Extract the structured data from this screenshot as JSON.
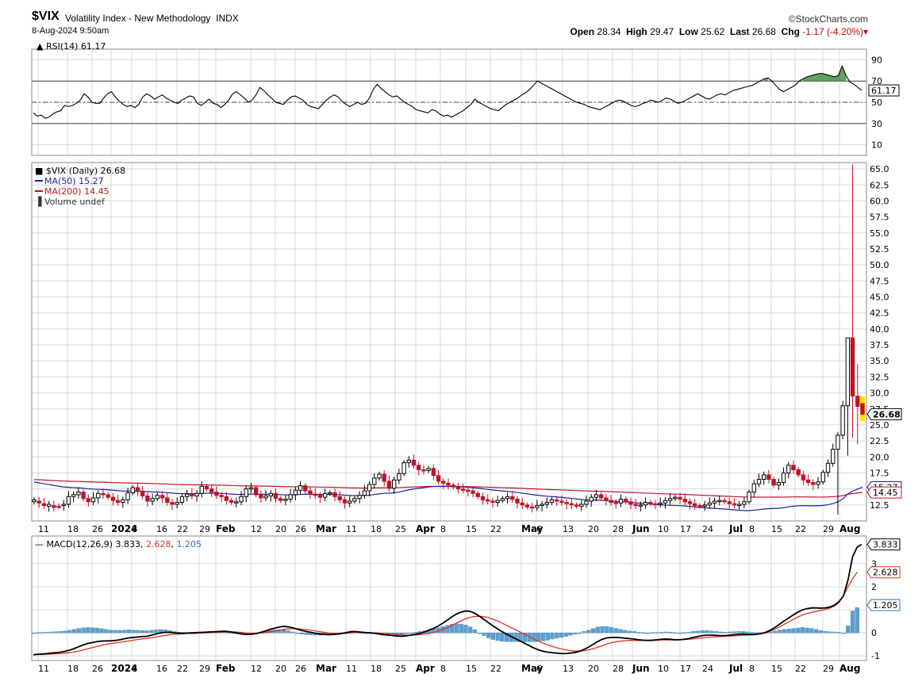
{
  "header": {
    "symbol": "$VIX",
    "description": "Volatility Index - New Methodology",
    "exchange": "INDX",
    "datetime": "8-Aug-2024 9:50am",
    "brand": "©StockCharts.com",
    "open_label": "Open",
    "open": "28.34",
    "high_label": "High",
    "high": "29.47",
    "low_label": "Low",
    "low": "25.62",
    "last_label": "Last",
    "last": "26.68",
    "chg_label": "Chg",
    "chg": "-1.17 (-4.20%)"
  },
  "colors": {
    "up": "#000000",
    "down": "#c0122a",
    "ma50": "#1c1ca0",
    "ma200": "#c0122a",
    "rsi": "#000000",
    "macd": "#000000",
    "signal": "#e03020",
    "hist": "#5aa0d0",
    "grid": "#d8d8d8",
    "highlight": "#ffe000"
  },
  "x_labels": [
    "11",
    "18",
    "26",
    "2024",
    "8",
    "16",
    "22",
    "29",
    "Feb",
    "12",
    "20",
    "26",
    "Mar",
    "11",
    "18",
    "25",
    "Apr",
    "8",
    "15",
    "22",
    "May",
    "6",
    "13",
    "20",
    "28",
    "Jun",
    "10",
    "17",
    "24",
    "Jul",
    "8",
    "15",
    "22",
    "29",
    "Aug"
  ],
  "chart_data": [
    {
      "type": "line",
      "name": "RSI(14)",
      "legend": "RSI(14) 61.17",
      "ylim": [
        0,
        100
      ],
      "yticks": [
        10,
        30,
        50,
        70,
        90
      ],
      "tick_labels": [
        "10",
        "30",
        "50",
        "70",
        "90"
      ],
      "reference_lines": [
        30,
        50,
        70
      ],
      "last_value": "61.17",
      "series": [
        {
          "name": "RSI(14)",
          "values": [
            40,
            37,
            38,
            35,
            36,
            39,
            41,
            42,
            47,
            46,
            47,
            49,
            52,
            58,
            55,
            50,
            49,
            49,
            54,
            58,
            60,
            55,
            51,
            48,
            46,
            47,
            45,
            48,
            55,
            58,
            56,
            53,
            55,
            57,
            54,
            52,
            50,
            49,
            52,
            54,
            56,
            55,
            49,
            47,
            50,
            53,
            49,
            48,
            45,
            48,
            52,
            58,
            60,
            57,
            54,
            50,
            52,
            57,
            64,
            61,
            57,
            54,
            50,
            49,
            48,
            52,
            55,
            56,
            54,
            52,
            48,
            46,
            45,
            44,
            48,
            52,
            55,
            57,
            55,
            51,
            48,
            46,
            48,
            50,
            48,
            49,
            54,
            62,
            67,
            63,
            60,
            57,
            55,
            56,
            53,
            50,
            48,
            46,
            43,
            42,
            41,
            40,
            43,
            42,
            39,
            37,
            38,
            36,
            38,
            40,
            42,
            45,
            48,
            53,
            50,
            48,
            46,
            44,
            43,
            42,
            45,
            48,
            50,
            52,
            54,
            57,
            59,
            62,
            66,
            70,
            68,
            66,
            64,
            62,
            60,
            58,
            56,
            54,
            52,
            50,
            49,
            48,
            46,
            45,
            44,
            43,
            45,
            47,
            49,
            51,
            52,
            51,
            49,
            47,
            46,
            47,
            49,
            50,
            52,
            51,
            50,
            52,
            54,
            53,
            51,
            49,
            50,
            52,
            54,
            56,
            58,
            56,
            54,
            53,
            55,
            57,
            58,
            57,
            59,
            61,
            62,
            63,
            64,
            65,
            66,
            68,
            70,
            72,
            73,
            70,
            66,
            62,
            60,
            62,
            64,
            66,
            70,
            72,
            74,
            75,
            76,
            77,
            77,
            76,
            75,
            74,
            75,
            84,
            75,
            69,
            67,
            64,
            61.17
          ]
        }
      ]
    },
    {
      "type": "candlestick",
      "name": "$VIX (Daily)",
      "legend": "$VIX (Daily) 26.68",
      "ylim": [
        10,
        66
      ],
      "yticks": [
        12.5,
        15.0,
        17.5,
        20.0,
        22.5,
        25.0,
        27.5,
        30.0,
        32.5,
        35.0,
        37.5,
        40.0,
        42.5,
        45.0,
        47.5,
        50.0,
        52.5,
        55.0,
        57.5,
        60.0,
        62.5,
        65.0
      ],
      "tick_labels": [
        "12.5",
        "17.5",
        "20.0",
        "22.5",
        "25.0",
        "27.5",
        "30.0",
        "32.5",
        "35.0",
        "37.5",
        "40.0",
        "42.5",
        "45.0",
        "47.5",
        "50.0",
        "52.5",
        "55.0",
        "57.5",
        "60.0",
        "62.5",
        "65.0"
      ],
      "close": [
        13.3,
        12.8,
        12.4,
        12.6,
        12.1,
        12.2,
        12.6,
        13.8,
        14.1,
        14.5,
        13.5,
        13.0,
        13.6,
        14.3,
        14.1,
        13.7,
        13.2,
        12.9,
        13.3,
        14.4,
        15.2,
        14.6,
        13.9,
        13.1,
        13.5,
        14.0,
        13.6,
        12.9,
        12.6,
        12.9,
        13.8,
        14.2,
        13.9,
        14.3,
        15.4,
        15.0,
        14.5,
        14.0,
        13.8,
        13.2,
        12.9,
        13.0,
        13.8,
        15.0,
        15.2,
        14.1,
        13.6,
        13.9,
        14.3,
        13.5,
        13.2,
        13.4,
        14.1,
        14.8,
        15.5,
        14.7,
        14.2,
        14.0,
        13.7,
        14.3,
        14.4,
        13.8,
        13.3,
        12.8,
        13.1,
        13.5,
        14.0,
        14.7,
        15.7,
        16.7,
        17.3,
        16.2,
        15.1,
        16.4,
        17.4,
        19.1,
        19.5,
        18.7,
        18.0,
        17.9,
        18.2,
        17.1,
        16.2,
        15.9,
        15.6,
        15.3,
        15.0,
        14.8,
        14.7,
        14.3,
        13.8,
        13.3,
        13.1,
        12.9,
        13.2,
        13.5,
        13.8,
        13.4,
        12.8,
        12.5,
        12.2,
        12.1,
        12.4,
        12.6,
        12.9,
        13.3,
        13.1,
        12.9,
        12.7,
        12.5,
        12.3,
        12.6,
        13.1,
        13.7,
        14.1,
        13.6,
        13.2,
        12.9,
        12.8,
        13.4,
        13.0,
        12.6,
        12.4,
        12.5,
        12.9,
        12.7,
        12.6,
        12.8,
        13.2,
        13.5,
        13.7,
        13.4,
        13.0,
        12.7,
        12.4,
        12.3,
        12.5,
        12.8,
        13.1,
        13.2,
        13.0,
        12.7,
        12.5,
        12.6,
        13.0,
        14.5,
        15.8,
        16.5,
        17.2,
        16.5,
        15.6,
        16.0,
        17.5,
        18.7,
        18.0,
        17.2,
        16.4,
        16.0,
        15.7,
        16.1,
        17.6,
        19.0,
        21.2,
        23.4,
        28.0,
        38.6,
        29.5,
        27.9,
        26.68
      ],
      "open": [
        13.0,
        13.1,
        12.7,
        12.3,
        12.4,
        12.3,
        12.4,
        12.6,
        13.8,
        14.1,
        14.5,
        13.5,
        13.0,
        13.6,
        14.3,
        14.1,
        13.7,
        13.2,
        12.9,
        13.3,
        14.4,
        15.2,
        14.6,
        13.9,
        13.1,
        13.5,
        14.0,
        13.6,
        12.9,
        12.6,
        12.9,
        13.8,
        14.2,
        13.9,
        14.3,
        15.4,
        15.0,
        14.5,
        14.0,
        13.8,
        13.2,
        12.9,
        13.0,
        13.8,
        15.0,
        15.2,
        14.1,
        13.6,
        13.9,
        14.3,
        13.5,
        13.2,
        13.4,
        14.1,
        14.8,
        15.5,
        14.7,
        14.2,
        14.0,
        13.7,
        14.3,
        14.4,
        13.8,
        13.3,
        12.8,
        13.1,
        13.5,
        14.0,
        14.7,
        15.7,
        16.7,
        17.3,
        16.2,
        15.1,
        16.4,
        17.4,
        19.1,
        19.5,
        18.7,
        18.0,
        17.9,
        18.2,
        17.1,
        16.2,
        15.9,
        15.6,
        15.3,
        15.0,
        14.8,
        14.7,
        14.3,
        13.8,
        13.3,
        13.1,
        12.9,
        13.2,
        13.5,
        13.8,
        13.4,
        12.8,
        12.5,
        12.2,
        12.1,
        12.4,
        12.6,
        12.9,
        13.3,
        13.1,
        12.9,
        12.7,
        12.5,
        12.3,
        12.6,
        13.1,
        13.7,
        14.1,
        13.6,
        13.2,
        12.9,
        12.8,
        13.4,
        13.0,
        12.6,
        12.4,
        12.5,
        12.9,
        12.7,
        12.6,
        12.8,
        13.2,
        13.5,
        13.7,
        13.4,
        13.0,
        12.7,
        12.4,
        12.3,
        12.5,
        12.8,
        13.1,
        13.2,
        13.0,
        12.7,
        12.5,
        12.6,
        13.0,
        14.5,
        15.8,
        16.5,
        17.2,
        16.5,
        15.6,
        16.0,
        17.5,
        18.7,
        18.0,
        17.2,
        16.4,
        16.0,
        15.7,
        16.1,
        17.6,
        19.0,
        21.2,
        23.4,
        28.0,
        38.6,
        29.5,
        28.34
      ],
      "ma50_last": "15.27",
      "ma200_last": "14.45",
      "last_value": "26.68",
      "legend_items": [
        "MA(50) 15.27",
        "MA(200) 14.45",
        "Volume undef"
      ]
    },
    {
      "type": "line",
      "name": "MACD(12,26,9)",
      "legend_prefix": "MACD(12,26,9)",
      "macd_last": "3.833",
      "signal_last": "2.628",
      "hist_last": "1.205",
      "ylim": [
        -1.2,
        4.2
      ],
      "yticks": [
        -1,
        0,
        1,
        2,
        3
      ],
      "tick_labels": [
        "-1",
        "0",
        "2",
        "3"
      ],
      "series": [
        {
          "name": "MACD",
          "values": [
            -0.95,
            -0.93,
            -0.92,
            -0.9,
            -0.88,
            -0.86,
            -0.84,
            -0.8,
            -0.75,
            -0.68,
            -0.6,
            -0.52,
            -0.46,
            -0.42,
            -0.38,
            -0.36,
            -0.35,
            -0.35,
            -0.33,
            -0.3,
            -0.26,
            -0.22,
            -0.2,
            -0.18,
            -0.16,
            -0.15,
            -0.1,
            -0.05,
            0.0,
            0.02,
            0.02,
            0.0,
            -0.02,
            -0.02,
            -0.01,
            0.0,
            0.01,
            0.02,
            0.03,
            0.04,
            0.05,
            0.06,
            0.07,
            0.05,
            0.02,
            -0.02,
            -0.06,
            -0.07,
            -0.06,
            -0.03,
            0.02,
            0.08,
            0.15,
            0.2,
            0.25,
            0.28,
            0.26,
            0.22,
            0.16,
            0.1,
            0.06,
            0.02,
            -0.02,
            -0.05,
            -0.07,
            -0.08,
            -0.07,
            -0.05,
            -0.02,
            0.02,
            0.06,
            0.05,
            0.03,
            0.01,
            0.0,
            -0.02,
            -0.05,
            -0.08,
            -0.1,
            -0.12,
            -0.14,
            -0.15,
            -0.13,
            -0.1,
            -0.06,
            -0.02,
            0.04,
            0.12,
            0.2,
            0.3,
            0.42,
            0.56,
            0.7,
            0.82,
            0.9,
            0.95,
            0.93,
            0.85,
            0.72,
            0.58,
            0.44,
            0.3,
            0.17,
            0.05,
            -0.06,
            -0.16,
            -0.26,
            -0.36,
            -0.46,
            -0.56,
            -0.66,
            -0.74,
            -0.8,
            -0.84,
            -0.86,
            -0.88,
            -0.9,
            -0.9,
            -0.88,
            -0.85,
            -0.8,
            -0.72,
            -0.62,
            -0.5,
            -0.38,
            -0.28,
            -0.22,
            -0.2,
            -0.2,
            -0.21,
            -0.23,
            -0.25,
            -0.27,
            -0.3,
            -0.32,
            -0.33,
            -0.32,
            -0.3,
            -0.28,
            -0.27,
            -0.28,
            -0.3,
            -0.3,
            -0.28,
            -0.25,
            -0.2,
            -0.16,
            -0.12,
            -0.1,
            -0.1,
            -0.11,
            -0.12,
            -0.12,
            -0.1,
            -0.08,
            -0.06,
            -0.05,
            -0.06,
            -0.07,
            -0.06,
            -0.03,
            0.03,
            0.12,
            0.24,
            0.38,
            0.52,
            0.65,
            0.78,
            0.9,
            1.0,
            1.05,
            1.08,
            1.08,
            1.07,
            1.08,
            1.12,
            1.2,
            1.35,
            1.6,
            2.3,
            3.3,
            3.72,
            3.833
          ]
        },
        {
          "name": "Signal",
          "values": [
            -0.95,
            -0.94,
            -0.94,
            -0.93,
            -0.92,
            -0.91,
            -0.9,
            -0.88,
            -0.86,
            -0.83,
            -0.79,
            -0.74,
            -0.69,
            -0.64,
            -0.59,
            -0.54,
            -0.5,
            -0.47,
            -0.44,
            -0.41,
            -0.38,
            -0.35,
            -0.32,
            -0.29,
            -0.26,
            -0.24,
            -0.21,
            -0.18,
            -0.14,
            -0.11,
            -0.08,
            -0.06,
            -0.05,
            -0.04,
            -0.03,
            -0.03,
            -0.02,
            -0.01,
            0.0,
            0.01,
            0.02,
            0.03,
            0.04,
            0.04,
            0.04,
            0.03,
            0.01,
            -0.01,
            -0.02,
            -0.02,
            -0.01,
            0.01,
            0.04,
            0.07,
            0.11,
            0.15,
            0.17,
            0.18,
            0.18,
            0.16,
            0.14,
            0.11,
            0.08,
            0.05,
            0.02,
            -0.01,
            -0.02,
            -0.03,
            -0.03,
            -0.02,
            0.0,
            0.01,
            0.02,
            0.02,
            0.01,
            0.0,
            -0.01,
            -0.03,
            -0.04,
            -0.06,
            -0.08,
            -0.09,
            -0.1,
            -0.1,
            -0.09,
            -0.08,
            -0.05,
            -0.02,
            0.02,
            0.08,
            0.15,
            0.23,
            0.33,
            0.43,
            0.52,
            0.61,
            0.67,
            0.71,
            0.72,
            0.7,
            0.66,
            0.59,
            0.51,
            0.42,
            0.32,
            0.22,
            0.13,
            0.03,
            -0.07,
            -0.17,
            -0.27,
            -0.36,
            -0.45,
            -0.52,
            -0.59,
            -0.65,
            -0.7,
            -0.74,
            -0.77,
            -0.79,
            -0.79,
            -0.78,
            -0.74,
            -0.69,
            -0.63,
            -0.56,
            -0.49,
            -0.43,
            -0.39,
            -0.36,
            -0.34,
            -0.33,
            -0.33,
            -0.33,
            -0.33,
            -0.33,
            -0.33,
            -0.32,
            -0.31,
            -0.31,
            -0.31,
            -0.31,
            -0.3,
            -0.29,
            -0.28,
            -0.26,
            -0.24,
            -0.22,
            -0.2,
            -0.18,
            -0.17,
            -0.16,
            -0.15,
            -0.14,
            -0.13,
            -0.12,
            -0.11,
            -0.1,
            -0.09,
            -0.07,
            -0.04,
            0.01,
            0.08,
            0.16,
            0.26,
            0.37,
            0.48,
            0.59,
            0.69,
            0.77,
            0.84,
            0.89,
            0.93,
            0.97,
            1.01,
            1.07,
            1.16,
            1.32,
            1.62,
            2.0,
            2.35,
            2.628
          ]
        }
      ]
    }
  ]
}
